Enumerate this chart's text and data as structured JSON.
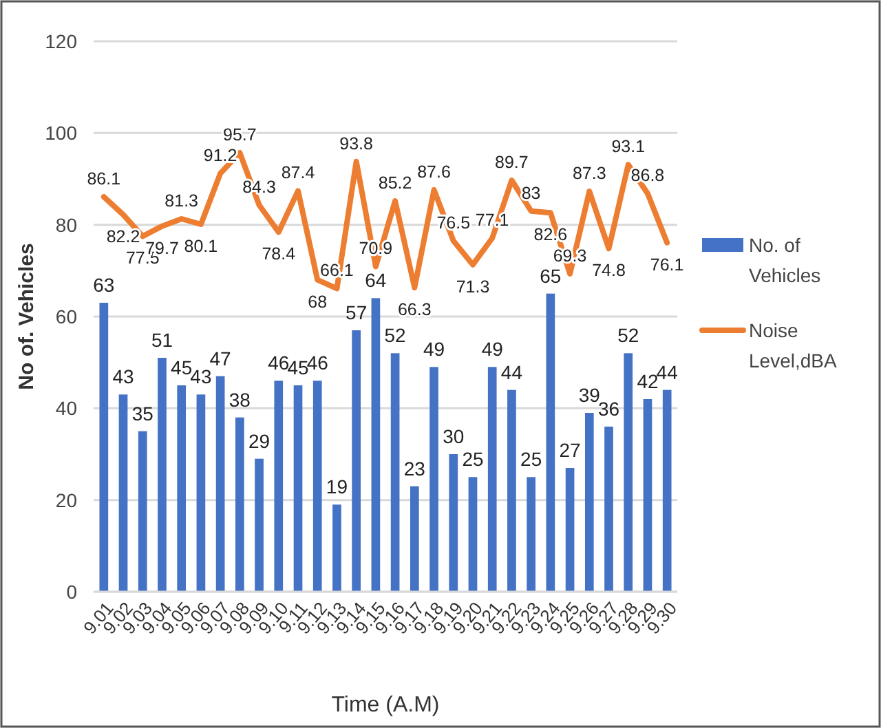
{
  "chart_data": {
    "type": "bar",
    "xlabel": "Time (A.M)",
    "ylabel": "No of. Vehicles",
    "categories": [
      "9.01",
      "9.02",
      "9.03",
      "9.04",
      "9.05",
      "9.06",
      "9.07",
      "9.08",
      "9.09",
      "9.10",
      "9.11",
      "9.12",
      "9.13",
      "9.14",
      "9.15",
      "9.16",
      "9.17",
      "9.18",
      "9.19",
      "9.20",
      "9.21",
      "9.22",
      "9.23",
      "9.24",
      "9.25",
      "9.26",
      "9.27",
      "9.28",
      "9.29",
      "9.30"
    ],
    "series": [
      {
        "name": "No. of Vehicles",
        "color": "#4472c4",
        "values": [
          63,
          43,
          35,
          51,
          45,
          43,
          47,
          38,
          29,
          46,
          45,
          46,
          19,
          57,
          64,
          52,
          23,
          49,
          30,
          25,
          49,
          44,
          25,
          65,
          27,
          39,
          36,
          52,
          42,
          44
        ]
      },
      {
        "name": "Noise Level,dBA",
        "type": "line",
        "color": "#ed7d31",
        "values": [
          86.1,
          82.2,
          77.5,
          79.7,
          81.3,
          80.1,
          91.2,
          95.7,
          84.3,
          78.4,
          87.4,
          68,
          66.1,
          93.8,
          70.9,
          85.2,
          66.3,
          87.6,
          76.5,
          71.3,
          77.1,
          89.7,
          83,
          82.6,
          69.3,
          87.3,
          74.8,
          93.1,
          86.8,
          76.1
        ]
      }
    ],
    "ylim": [
      0,
      120
    ],
    "yticks": [
      0,
      20,
      40,
      60,
      80,
      100,
      120
    ],
    "grid": "y",
    "legend": "right",
    "data_labels": true,
    "marker": "none",
    "line_style": "solid"
  }
}
